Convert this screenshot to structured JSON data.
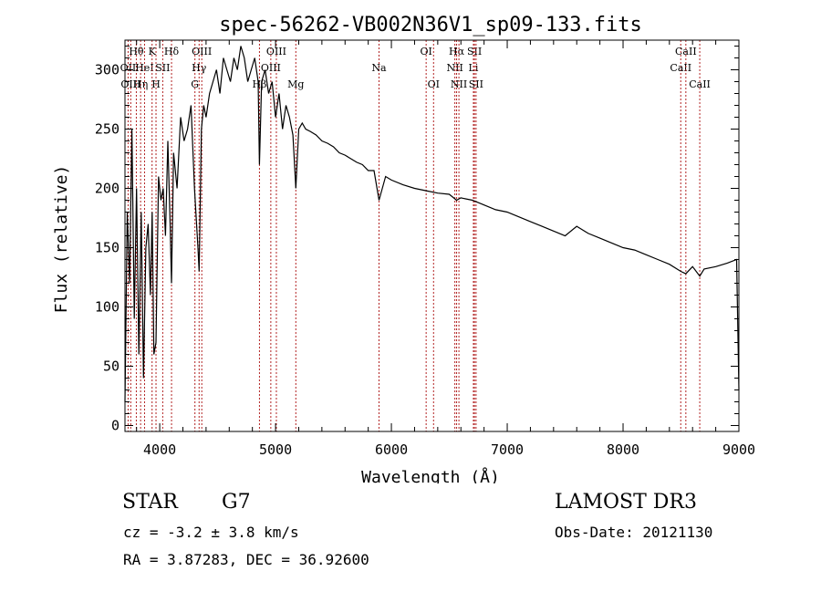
{
  "chart_data": {
    "type": "line",
    "title": "spec-56262-VB002N36V1_sp09-133.fits",
    "xlabel": "Wavelength (Å)",
    "ylabel": "Flux (relative)",
    "xlim": [
      3700,
      9000
    ],
    "ylim": [
      -5,
      325
    ],
    "xticks": [
      4000,
      5000,
      6000,
      7000,
      8000,
      9000
    ],
    "yticks": [
      0,
      50,
      100,
      150,
      200,
      250,
      300
    ],
    "xtick_labels": [
      "4000",
      "5000",
      "6000",
      "7000",
      "8000",
      "9000"
    ],
    "ytick_labels": [
      "0",
      "50",
      "100",
      "150",
      "200",
      "250",
      "300"
    ],
    "series": [
      {
        "name": "flux",
        "x": [
          3700,
          3720,
          3740,
          3760,
          3780,
          3800,
          3820,
          3840,
          3860,
          3880,
          3900,
          3920,
          3935,
          3950,
          3968,
          3990,
          4010,
          4030,
          4050,
          4070,
          4090,
          4102,
          4120,
          4150,
          4180,
          4210,
          4240,
          4270,
          4300,
          4330,
          4340,
          4360,
          4380,
          4400,
          4430,
          4460,
          4490,
          4520,
          4550,
          4580,
          4610,
          4640,
          4670,
          4700,
          4730,
          4760,
          4790,
          4820,
          4850,
          4861,
          4880,
          4910,
          4940,
          4970,
          5000,
          5030,
          5060,
          5090,
          5120,
          5150,
          5175,
          5200,
          5230,
          5260,
          5300,
          5350,
          5400,
          5450,
          5500,
          5550,
          5600,
          5650,
          5700,
          5750,
          5800,
          5850,
          5893,
          5950,
          6000,
          6100,
          6200,
          6300,
          6400,
          6500,
          6563,
          6600,
          6700,
          6800,
          6900,
          7000,
          7100,
          7200,
          7300,
          7400,
          7500,
          7600,
          7700,
          7800,
          7900,
          8000,
          8100,
          8200,
          8300,
          8400,
          8498,
          8542,
          8600,
          8662,
          8700,
          8800,
          8900,
          8980,
          9000
        ],
        "y": [
          20,
          180,
          120,
          250,
          90,
          200,
          60,
          180,
          40,
          150,
          170,
          110,
          180,
          60,
          70,
          210,
          190,
          200,
          160,
          240,
          170,
          120,
          230,
          200,
          260,
          240,
          250,
          270,
          200,
          150,
          130,
          250,
          270,
          260,
          280,
          290,
          300,
          280,
          310,
          300,
          290,
          310,
          300,
          320,
          310,
          290,
          300,
          310,
          290,
          220,
          290,
          300,
          280,
          290,
          260,
          280,
          250,
          270,
          260,
          245,
          200,
          250,
          255,
          250,
          248,
          245,
          240,
          238,
          235,
          230,
          228,
          225,
          222,
          220,
          215,
          215,
          190,
          210,
          207,
          203,
          200,
          198,
          196,
          195,
          190,
          192,
          190,
          186,
          182,
          180,
          176,
          172,
          168,
          164,
          160,
          168,
          162,
          158,
          154,
          150,
          148,
          144,
          140,
          136,
          130,
          128,
          134,
          126,
          132,
          134,
          137,
          140,
          30
        ]
      }
    ],
    "lines": [
      {
        "wavelength": 3727,
        "label": "OII",
        "row": 1
      },
      {
        "wavelength": 3750,
        "label": "OIII",
        "row": 2
      },
      {
        "wavelength": 3798,
        "label": "Hθ",
        "row": 0
      },
      {
        "wavelength": 3835,
        "label": "Hη",
        "row": 2
      },
      {
        "wavelength": 3869,
        "label": "HeI",
        "row": 1
      },
      {
        "wavelength": 3934,
        "label": "K",
        "row": 0
      },
      {
        "wavelength": 3968,
        "label": "H",
        "row": 2
      },
      {
        "wavelength": 4026,
        "label": "SII",
        "row": 1
      },
      {
        "wavelength": 4102,
        "label": "Hδ",
        "row": 0
      },
      {
        "wavelength": 4304,
        "label": "G",
        "row": 2
      },
      {
        "wavelength": 4340,
        "label": "Hγ",
        "row": 1
      },
      {
        "wavelength": 4363,
        "label": "OIII",
        "row": 0
      },
      {
        "wavelength": 4861,
        "label": "Hβ",
        "row": 2
      },
      {
        "wavelength": 4959,
        "label": "OIII",
        "row": 1
      },
      {
        "wavelength": 5007,
        "label": "OIII",
        "row": 0
      },
      {
        "wavelength": 5175,
        "label": "Mg",
        "row": 2
      },
      {
        "wavelength": 5893,
        "label": "Na",
        "row": 1
      },
      {
        "wavelength": 6300,
        "label": "OI",
        "row": 0
      },
      {
        "wavelength": 6364,
        "label": "OI",
        "row": 2
      },
      {
        "wavelength": 6548,
        "label": "NII",
        "row": 1
      },
      {
        "wavelength": 6563,
        "label": "Hα",
        "row": 0
      },
      {
        "wavelength": 6583,
        "label": "NII",
        "row": 2
      },
      {
        "wavelength": 6708,
        "label": "Li",
        "row": 1
      },
      {
        "wavelength": 6717,
        "label": "SII",
        "row": 0
      },
      {
        "wavelength": 6731,
        "label": "SII",
        "row": 2
      },
      {
        "wavelength": 8498,
        "label": "CaII",
        "row": 1
      },
      {
        "wavelength": 8542,
        "label": "CaII",
        "row": 0
      },
      {
        "wavelength": 8662,
        "label": "CaII",
        "row": 2
      }
    ]
  },
  "info": {
    "object_type": "STAR",
    "spectral_class": "G7",
    "survey": "LAMOST DR3",
    "cz": "cz = -3.2 ± 3.8 km/s",
    "obs_date": "Obs-Date: 20121130",
    "ra_dec": "RA =   3.87283, DEC =  36.92600"
  },
  "colors": {
    "axis": "#000000",
    "spectrum": "#000000",
    "line_markers": "#b22222"
  }
}
